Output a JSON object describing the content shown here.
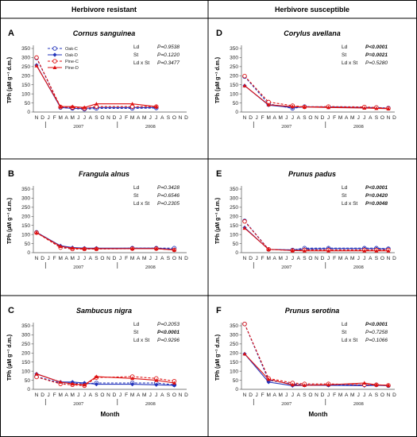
{
  "headers": {
    "left": "Herbivore resistant",
    "right": "Herbivore susceptible"
  },
  "colors": {
    "oak": "#2233bb",
    "pine": "#dd1111"
  },
  "chart_data": [
    {
      "type": "line",
      "letter": "A",
      "title": "Cornus sanguinea",
      "ylabel": "TPh (µM g⁻¹ d.m.)",
      "xlabel": "",
      "ylim": [
        0,
        350
      ],
      "yticks": [
        0,
        50,
        100,
        150,
        200,
        250,
        300,
        350
      ],
      "x_tick_labels": [
        "N",
        "D",
        "J",
        "F",
        "M",
        "A",
        "M",
        "J",
        "J",
        "A",
        "S",
        "O",
        "N",
        "D",
        "J",
        "F",
        "M",
        "A",
        "M",
        "J",
        "J",
        "A",
        "S",
        "O",
        "N",
        "D"
      ],
      "years": [
        "2007",
        "2008"
      ],
      "legend": {
        "placement": "top-left",
        "entries": [
          "Oak-C",
          "Oak-D",
          "Pine-C",
          "Pine-D"
        ]
      },
      "stats": [
        {
          "term": "Ld",
          "value": "P=0.9538",
          "significant": false
        },
        {
          "term": "St",
          "value": "P=0.1220",
          "significant": false
        },
        {
          "term": "Ld x St",
          "value": "P=0.3477",
          "significant": false
        }
      ],
      "x": [
        1,
        5,
        7,
        9,
        11,
        17,
        21
      ],
      "series": [
        {
          "name": "Oak-C",
          "values": [
            298,
            25,
            20,
            15,
            20,
            20,
            22
          ]
        },
        {
          "name": "Oak-D",
          "values": [
            258,
            25,
            20,
            20,
            25,
            25,
            25
          ]
        },
        {
          "name": "Pine-C",
          "values": [
            300,
            28,
            25,
            20,
            30,
            30,
            30
          ]
        },
        {
          "name": "Pine-D",
          "values": [
            255,
            30,
            30,
            25,
            45,
            45,
            30
          ]
        }
      ]
    },
    {
      "type": "line",
      "letter": "B",
      "title": "Frangula alnus",
      "ylabel": "TPh (µM g⁻¹ d.m.)",
      "xlabel": "",
      "ylim": [
        0,
        350
      ],
      "yticks": [
        0,
        50,
        100,
        150,
        200,
        250,
        300,
        350
      ],
      "x_tick_labels": [
        "N",
        "D",
        "J",
        "F",
        "M",
        "A",
        "M",
        "J",
        "J",
        "A",
        "S",
        "O",
        "N",
        "D",
        "J",
        "F",
        "M",
        "A",
        "M",
        "J",
        "J",
        "A",
        "S",
        "O",
        "N",
        "D"
      ],
      "years": [
        "2007",
        "2008"
      ],
      "stats": [
        {
          "term": "Ld",
          "value": "P=0.3428",
          "significant": false
        },
        {
          "term": "St",
          "value": "P=0.6546",
          "significant": false
        },
        {
          "term": "Ld x St",
          "value": "P=0.2305",
          "significant": false
        }
      ],
      "x": [
        1,
        5,
        7,
        9,
        11,
        17,
        21,
        24
      ],
      "series": [
        {
          "name": "Oak-C",
          "values": [
            112,
            30,
            22,
            22,
            22,
            25,
            25,
            25
          ]
        },
        {
          "name": "Oak-D",
          "values": [
            112,
            38,
            28,
            25,
            25,
            25,
            25,
            18
          ]
        },
        {
          "name": "Pine-C",
          "values": [
            110,
            28,
            20,
            20,
            20,
            22,
            22,
            15
          ]
        },
        {
          "name": "Pine-D",
          "values": [
            110,
            35,
            25,
            22,
            22,
            22,
            22,
            15
          ]
        }
      ]
    },
    {
      "type": "line",
      "letter": "C",
      "title": "Sambucus nigra",
      "ylabel": "TPh (µM g⁻¹ d.m.)",
      "xlabel": "Month",
      "ylim": [
        0,
        350
      ],
      "yticks": [
        0,
        50,
        100,
        150,
        200,
        250,
        300,
        350
      ],
      "x_tick_labels": [
        "N",
        "D",
        "J",
        "F",
        "M",
        "A",
        "M",
        "J",
        "J",
        "A",
        "S",
        "O",
        "N",
        "D",
        "J",
        "F",
        "M",
        "A",
        "M",
        "J",
        "J",
        "A",
        "S",
        "O",
        "N",
        "D"
      ],
      "years": [
        "2007",
        "2008"
      ],
      "stats": [
        {
          "term": "Ld",
          "value": "P=0.2053",
          "significant": false
        },
        {
          "term": "St",
          "value": "P<0.0001",
          "significant": true
        },
        {
          "term": "Ld x St",
          "value": "P=0.9296",
          "significant": false
        }
      ],
      "x": [
        1,
        5,
        7,
        9,
        11,
        17,
        21,
        24
      ],
      "series": [
        {
          "name": "Oak-C",
          "values": [
            70,
            35,
            35,
            30,
            35,
            35,
            35,
            25
          ]
        },
        {
          "name": "Oak-D",
          "values": [
            85,
            40,
            40,
            35,
            28,
            28,
            25,
            22
          ]
        },
        {
          "name": "Pine-C",
          "values": [
            68,
            30,
            25,
            20,
            65,
            70,
            60,
            45
          ]
        },
        {
          "name": "Pine-D",
          "values": [
            85,
            40,
            30,
            25,
            70,
            60,
            50,
            35
          ]
        }
      ]
    },
    {
      "type": "line",
      "letter": "D",
      "title": "Corylus avellana",
      "ylabel": "TPh (µM g⁻¹ d.m.)",
      "xlabel": "",
      "ylim": [
        0,
        350
      ],
      "yticks": [
        0,
        50,
        100,
        150,
        200,
        250,
        300,
        350
      ],
      "x_tick_labels": [
        "N",
        "D",
        "J",
        "F",
        "M",
        "A",
        "M",
        "J",
        "J",
        "A",
        "S",
        "O",
        "N",
        "D",
        "J",
        "F",
        "M",
        "A",
        "M",
        "J",
        "J",
        "A",
        "S",
        "O",
        "N",
        "D"
      ],
      "years": [
        "2007",
        "2008"
      ],
      "stats": [
        {
          "term": "Ld",
          "value": "P<0.0001",
          "significant": true
        },
        {
          "term": "St",
          "value": "P=0.0021",
          "significant": true
        },
        {
          "term": "Ld x St",
          "value": "P=0.5280",
          "significant": false
        }
      ],
      "x": [
        1,
        5,
        9,
        11,
        15,
        21,
        23,
        25
      ],
      "series": [
        {
          "name": "Oak-C",
          "values": [
            195,
            45,
            20,
            30,
            28,
            25,
            25,
            22
          ]
        },
        {
          "name": "Oak-D",
          "values": [
            145,
            38,
            25,
            28,
            28,
            25,
            22,
            20
          ]
        },
        {
          "name": "Pine-C",
          "values": [
            198,
            55,
            35,
            28,
            30,
            28,
            25,
            20
          ]
        },
        {
          "name": "Pine-D",
          "values": [
            145,
            40,
            30,
            28,
            25,
            22,
            20,
            18
          ]
        }
      ]
    },
    {
      "type": "line",
      "letter": "E",
      "title": "Prunus padus",
      "ylabel": "TPh (µM g⁻¹ d.m.)",
      "xlabel": "",
      "ylim": [
        0,
        350
      ],
      "yticks": [
        0,
        50,
        100,
        150,
        200,
        250,
        300,
        350
      ],
      "x_tick_labels": [
        "N",
        "D",
        "J",
        "F",
        "M",
        "A",
        "M",
        "J",
        "J",
        "A",
        "S",
        "O",
        "N",
        "D",
        "J",
        "F",
        "M",
        "A",
        "M",
        "J",
        "J",
        "A",
        "S",
        "O",
        "N",
        "D"
      ],
      "years": [
        "2007",
        "2008"
      ],
      "stats": [
        {
          "term": "Ld",
          "value": "P<0.0001",
          "significant": true
        },
        {
          "term": "St",
          "value": "P=0.0420",
          "significant": true
        },
        {
          "term": "Ld x St",
          "value": "P=0.0048",
          "significant": true
        }
      ],
      "x": [
        1,
        5,
        9,
        11,
        15,
        21,
        23,
        25
      ],
      "series": [
        {
          "name": "Oak-C",
          "values": [
            175,
            18,
            15,
            25,
            25,
            25,
            25,
            22
          ]
        },
        {
          "name": "Oak-D",
          "values": [
            138,
            18,
            15,
            20,
            22,
            22,
            22,
            20
          ]
        },
        {
          "name": "Pine-C",
          "values": [
            172,
            18,
            12,
            15,
            15,
            15,
            15,
            15
          ]
        },
        {
          "name": "Pine-D",
          "values": [
            135,
            18,
            12,
            10,
            10,
            10,
            10,
            10
          ]
        }
      ]
    },
    {
      "type": "line",
      "letter": "F",
      "title": "Prunus serotina",
      "ylabel": "TPh (µM g⁻¹ d.m.)",
      "xlabel": "Month",
      "ylim": [
        0,
        350
      ],
      "yticks": [
        0,
        50,
        100,
        150,
        200,
        250,
        300,
        350
      ],
      "x_tick_labels": [
        "N",
        "D",
        "J",
        "F",
        "M",
        "A",
        "M",
        "J",
        "J",
        "A",
        "S",
        "O",
        "N",
        "D",
        "J",
        "F",
        "M",
        "A",
        "M",
        "J",
        "J",
        "A",
        "S",
        "O",
        "N",
        "D"
      ],
      "years": [
        "2007",
        "2008"
      ],
      "stats": [
        {
          "term": "Ld",
          "value": "P<0.0001",
          "significant": true
        },
        {
          "term": "St",
          "value": "P=0.7258",
          "significant": false
        },
        {
          "term": "Ld x St",
          "value": "P=0.1066",
          "significant": false
        }
      ],
      "x": [
        1,
        5,
        9,
        11,
        15,
        21,
        23,
        25
      ],
      "series": [
        {
          "name": "Oak-C",
          "values": [
            360,
            50,
            30,
            25,
            25,
            25,
            25,
            20
          ]
        },
        {
          "name": "Oak-D",
          "values": [
            195,
            40,
            20,
            22,
            22,
            20,
            22,
            20
          ]
        },
        {
          "name": "Pine-C",
          "values": [
            360,
            60,
            35,
            30,
            30,
            25,
            25,
            22
          ]
        },
        {
          "name": "Pine-D",
          "values": [
            195,
            55,
            25,
            22,
            25,
            35,
            25,
            22
          ]
        }
      ]
    }
  ]
}
